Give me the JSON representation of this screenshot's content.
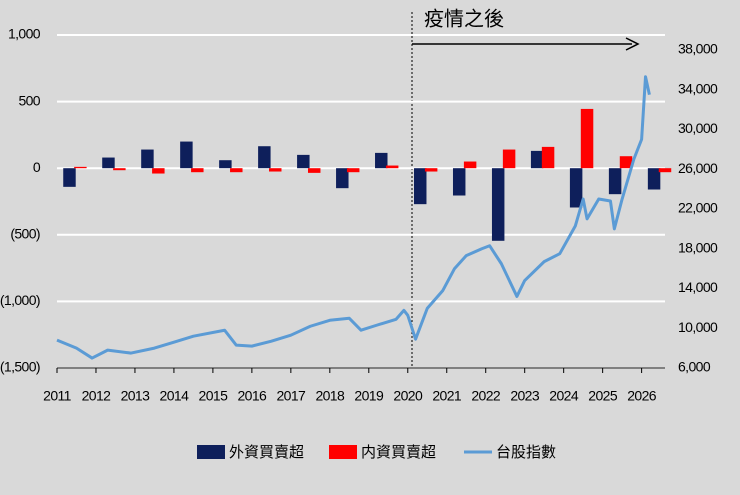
{
  "chart_data": {
    "type": "bar",
    "annotation": "疫情之後",
    "x": [
      2011,
      2012,
      2013,
      2014,
      2015,
      2016,
      2017,
      2018,
      2019,
      2020,
      2021,
      2022,
      2023,
      2024,
      2025,
      2026
    ],
    "series": [
      {
        "name": "外資買賣超",
        "color": "#0e1f5b",
        "type": "bar",
        "values": [
          -140,
          80,
          140,
          200,
          60,
          165,
          100,
          -150,
          115,
          -270,
          -205,
          -545,
          130,
          -295,
          -195,
          -160
        ]
      },
      {
        "name": "内資買賣超",
        "color": "#ff0000",
        "type": "bar",
        "values": [
          10,
          -15,
          -40,
          -30,
          -30,
          -25,
          -35,
          -30,
          20,
          -25,
          50,
          140,
          160,
          445,
          90,
          -30
        ]
      },
      {
        "name": "台股指數",
        "color": "#5b9bd5",
        "type": "line",
        "axis": "y2",
        "x": [
          2011.0,
          2011.5,
          2011.9,
          2012.3,
          2012.9,
          2013.5,
          2014.0,
          2014.5,
          2015.3,
          2015.6,
          2016.0,
          2016.5,
          2017.0,
          2017.5,
          2018.0,
          2018.5,
          2018.8,
          2019.2,
          2019.7,
          2019.9,
          2020.0,
          2020.2,
          2020.5,
          2020.9,
          2021.2,
          2021.5,
          2021.9,
          2022.1,
          2022.4,
          2022.8,
          2023.0,
          2023.5,
          2023.9,
          2024.3,
          2024.5,
          2024.6,
          2024.9,
          2025.2,
          2025.3,
          2025.5,
          2025.8,
          2026.0,
          2026.1,
          2026.2
        ],
        "values": [
          8800,
          8000,
          7000,
          7800,
          7500,
          8000,
          8600,
          9200,
          9800,
          8300,
          8200,
          8700,
          9300,
          10200,
          10800,
          11000,
          9800,
          10300,
          10900,
          11800,
          11300,
          8900,
          12000,
          13800,
          16000,
          17300,
          18000,
          18300,
          16500,
          13200,
          14800,
          16700,
          17500,
          20300,
          23000,
          21000,
          23000,
          22800,
          20000,
          23000,
          27000,
          29000,
          35300,
          33500
        ]
      }
    ],
    "xlim": [
      2011,
      2026.6
    ],
    "xticks": [
      2011,
      2012,
      2013,
      2014,
      2015,
      2016,
      2017,
      2018,
      2019,
      2020,
      2021,
      2022,
      2023,
      2024,
      2025,
      2026
    ],
    "ylim": [
      -1500,
      1000
    ],
    "yticks": [
      {
        "value": 1000,
        "label": "1,000"
      },
      500,
      0,
      {
        "value": -500,
        "label": "(500)"
      },
      {
        "value": -1000,
        "label": "(1,000)"
      },
      {
        "value": -1500,
        "label": "(1,500)"
      }
    ],
    "y2lim": [
      6000,
      39500
    ],
    "y2ticks": [
      {
        "value": 38000,
        "label": "38,000"
      },
      {
        "value": 34000,
        "label": "34,000"
      },
      {
        "value": 30000,
        "label": "30,000"
      },
      {
        "value": 26000,
        "label": "26,000"
      },
      {
        "value": 22000,
        "label": "22,000"
      },
      {
        "value": 18000,
        "label": "18,000"
      },
      {
        "value": 14000,
        "label": "14,000"
      },
      {
        "value": 10000,
        "label": "10,000"
      },
      {
        "value": 6000,
        "label": "6,000"
      }
    ],
    "grid": true
  }
}
